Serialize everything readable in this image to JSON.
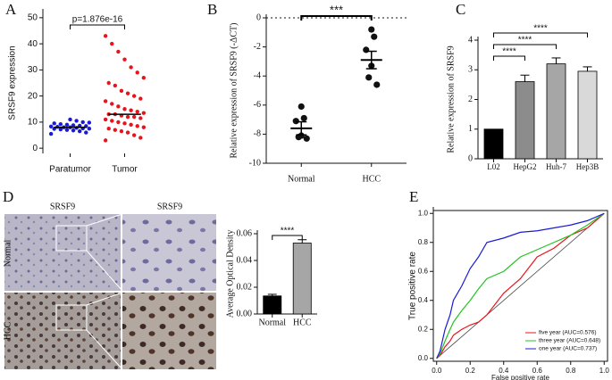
{
  "chart_data": [
    {
      "type": "dot",
      "label": "A",
      "ylabel": "SRSF9 expression",
      "annotation": "p=1.876e-16",
      "categories": [
        "Paratumor",
        "Tumor"
      ],
      "colors": [
        "#1a1ad6",
        "#e8141c"
      ],
      "points": [
        [
          5.5,
          6,
          6.5,
          6.8,
          7,
          7.2,
          7.4,
          7.5,
          7.6,
          7.8,
          8,
          8,
          8.2,
          8.3,
          8.5,
          8.6,
          8.8,
          9,
          9.2,
          9.5,
          9.8,
          10,
          10.5,
          11
        ],
        [
          3,
          4,
          5,
          6,
          6.5,
          7,
          7.5,
          8,
          8.5,
          9,
          9.5,
          10,
          10.5,
          11,
          11.5,
          12,
          12,
          12.5,
          13,
          13,
          13.5,
          14,
          14.5,
          15,
          16,
          17,
          18,
          19,
          20,
          21,
          22,
          24,
          25,
          27,
          29,
          31,
          34,
          37,
          40,
          43
        ]
      ],
      "medians": [
        8,
        13
      ],
      "ylim": [
        -2,
        52
      ],
      "yticks": [
        0,
        10,
        20,
        30,
        40,
        50
      ]
    },
    {
      "type": "dot",
      "label": "B",
      "ylabel": "Relative expression of SRSF9 (-ΔCT)",
      "annotation": "***",
      "categories": [
        "Normal",
        "HCC"
      ],
      "colors": [
        "#111111",
        "#111111"
      ],
      "points": [
        [
          -6.1,
          -6.9,
          -7.1,
          -8.1,
          -8.2,
          -8.3
        ],
        [
          -0.8,
          -1.3,
          -2.2,
          -3.3,
          -4.1,
          -4.6
        ]
      ],
      "means": [
        -7.6,
        -2.9
      ],
      "errors": [
        0.45,
        0.6
      ],
      "ylim": [
        -10,
        0
      ],
      "yticks": [
        0,
        -2,
        -4,
        -6,
        -8,
        -10
      ]
    },
    {
      "type": "bar",
      "label": "C",
      "ylabel": "Relative expression of SRSF9",
      "annotations": [
        "****",
        "****",
        "****"
      ],
      "categories": [
        "L02",
        "HepG2",
        "Huh-7",
        "Hep3B"
      ],
      "values": [
        1,
        2.6,
        3.2,
        2.95
      ],
      "errors": [
        0,
        0.22,
        0.2,
        0.15
      ],
      "colors": [
        "#000000",
        "#8c8c8c",
        "#a6a6a6",
        "#d9d9d9"
      ],
      "ylim": [
        0,
        4
      ],
      "yticks": [
        0,
        1,
        2,
        3,
        4
      ]
    },
    {
      "type": "bar",
      "label": "D",
      "ylabel": "Average Optical Density",
      "annotations": [
        "****"
      ],
      "image_panel": {
        "column_titles": [
          "SRSF9",
          "SRSF9"
        ],
        "row_labels": [
          "Normal",
          "HCC"
        ]
      },
      "categories": [
        "Normal",
        "HCC"
      ],
      "values": [
        0.0135,
        0.053
      ],
      "errors": [
        0.0012,
        0.0025
      ],
      "colors": [
        "#000000",
        "#a6a6a6"
      ],
      "ylim": [
        0,
        0.06
      ],
      "yticks": [
        {
          "value": 0,
          "label": "0.00"
        },
        0.02,
        0.04,
        0.06
      ]
    },
    {
      "type": "line",
      "label": "E",
      "xlabel": "False positive rate",
      "ylabel": "True positive rate",
      "xlim": [
        -0.02,
        1.02
      ],
      "ylim": [
        -0.02,
        1.02
      ],
      "xticks": [
        {
          "value": 0,
          "label": "0.0"
        },
        0.2,
        0.4,
        0.6,
        0.8,
        {
          "value": 1,
          "label": "1.0"
        }
      ],
      "yticks": [
        {
          "value": 0,
          "label": "0.0"
        },
        0.2,
        0.4,
        0.6,
        0.8,
        {
          "value": 1,
          "label": "1.0"
        }
      ],
      "x": [
        0,
        0.02,
        0.05,
        0.08,
        0.1,
        0.15,
        0.2,
        0.25,
        0.3,
        0.4,
        0.5,
        0.6,
        0.7,
        0.8,
        0.9,
        1
      ],
      "series": [
        {
          "name": "five year (AUC=0.576)",
          "color": "#e8141c",
          "values": [
            0,
            0.02,
            0.08,
            0.12,
            0.16,
            0.2,
            0.23,
            0.25,
            0.3,
            0.45,
            0.55,
            0.7,
            0.76,
            0.85,
            0.9,
            1
          ]
        },
        {
          "name": "three year (AUC=0.648)",
          "color": "#22c422",
          "values": [
            0,
            0.03,
            0.12,
            0.2,
            0.25,
            0.33,
            0.4,
            0.48,
            0.55,
            0.6,
            0.7,
            0.75,
            0.8,
            0.85,
            0.92,
            1
          ]
        },
        {
          "name": "one year (AUC=0.737)",
          "color": "#1a1ad6",
          "values": [
            0,
            0.05,
            0.2,
            0.3,
            0.4,
            0.5,
            0.62,
            0.7,
            0.8,
            0.83,
            0.87,
            0.88,
            0.9,
            0.92,
            0.95,
            1
          ]
        }
      ]
    }
  ]
}
